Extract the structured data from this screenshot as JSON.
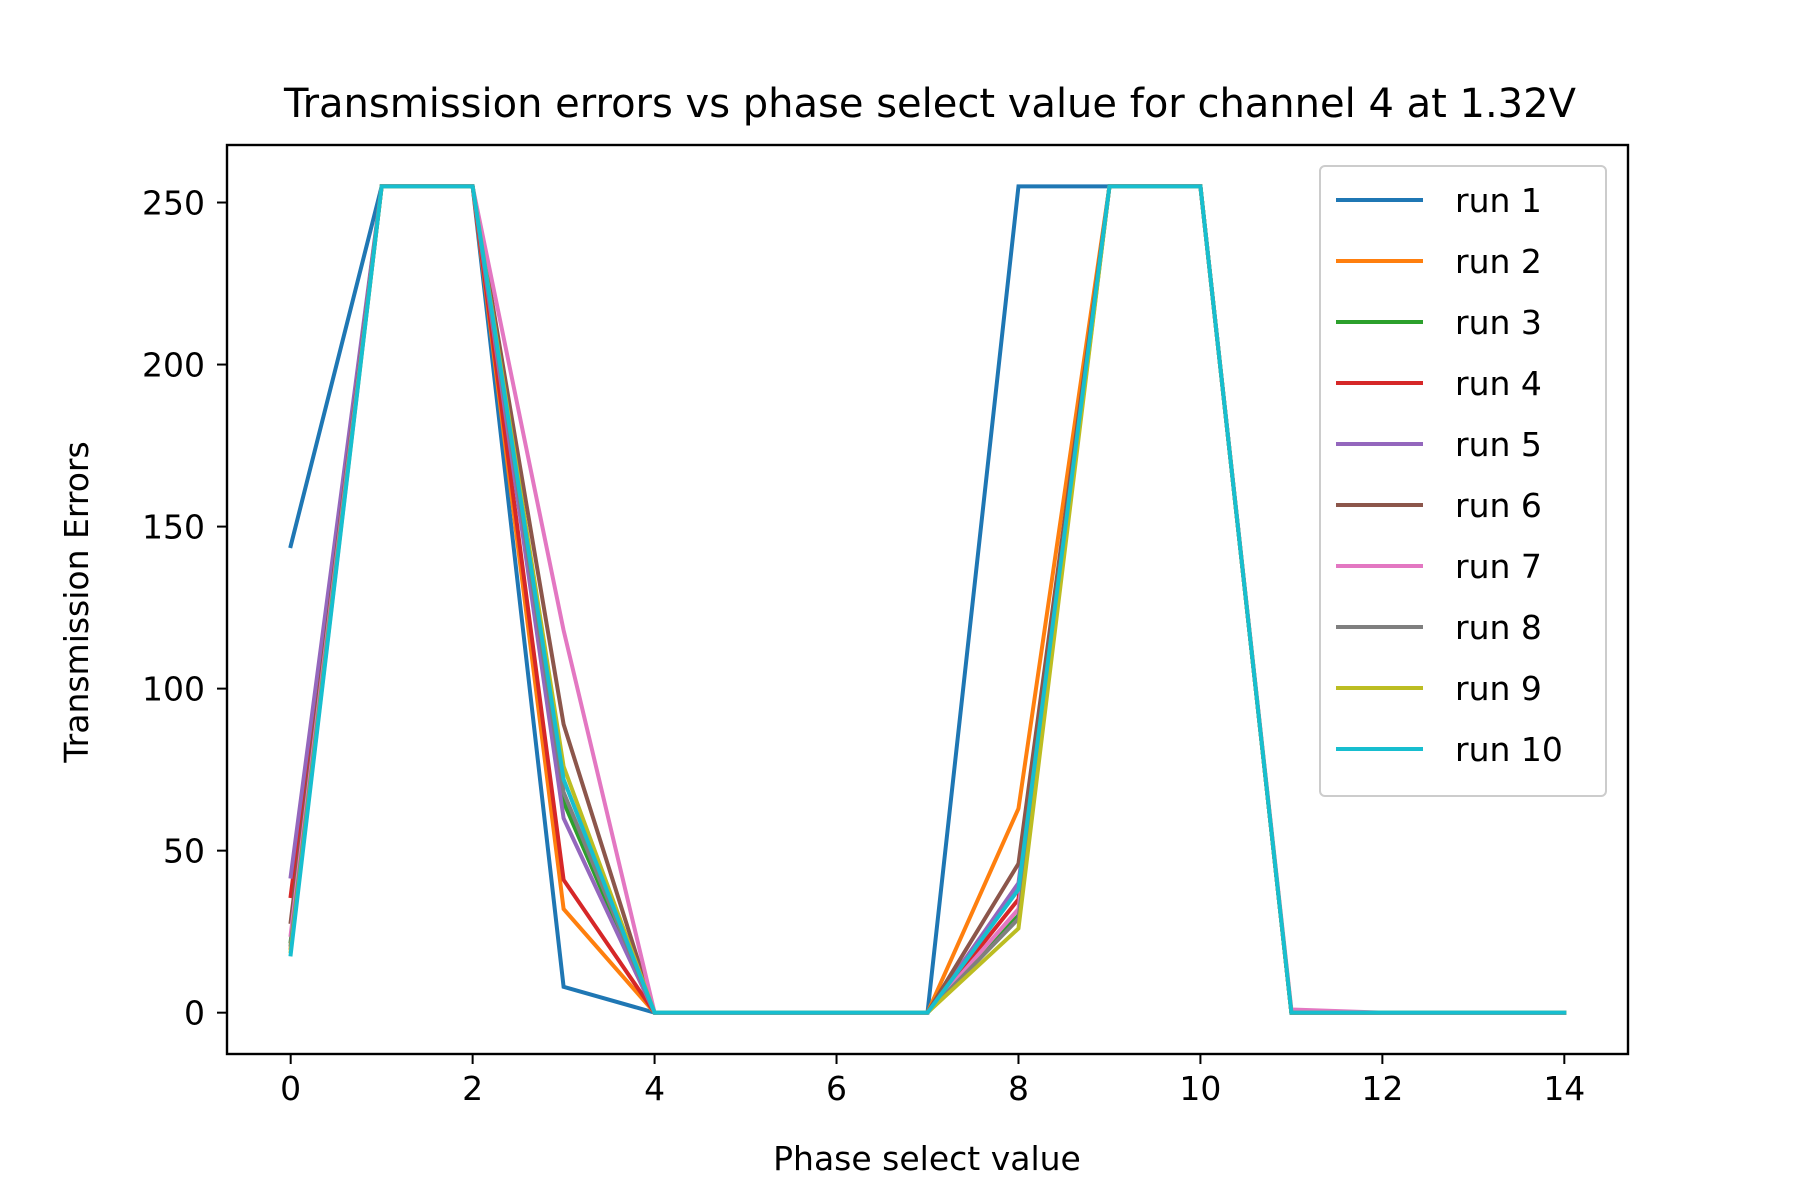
{
  "chart_data": {
    "type": "line",
    "title": "Transmission errors vs phase select value for channel 4 at 1.32V",
    "xlabel": "Phase select value",
    "ylabel": "Transmission Errors",
    "x": [
      0,
      1,
      2,
      3,
      4,
      5,
      6,
      7,
      8,
      9,
      10,
      11,
      12,
      13,
      14
    ],
    "xlim": [
      -0.7,
      14.7
    ],
    "ylim": [
      -12.75,
      267.75
    ],
    "xticks": [
      0,
      2,
      4,
      6,
      8,
      10,
      12,
      14
    ],
    "yticks": [
      0,
      50,
      100,
      150,
      200,
      250
    ],
    "grid": false,
    "legend_position": "upper right",
    "series": [
      {
        "name": "run 1",
        "color": "#1f77b4",
        "values": [
          144,
          255,
          255,
          8,
          0,
          0,
          0,
          0,
          255,
          255,
          255,
          0,
          0,
          0,
          0
        ]
      },
      {
        "name": "run 2",
        "color": "#ff7f0e",
        "values": [
          20,
          255,
          255,
          32,
          0,
          0,
          0,
          0,
          63,
          255,
          255,
          0,
          0,
          0,
          0
        ]
      },
      {
        "name": "run 3",
        "color": "#2ca02c",
        "values": [
          22,
          255,
          255,
          65,
          0,
          0,
          0,
          0,
          30,
          255,
          255,
          0,
          0,
          0,
          0
        ]
      },
      {
        "name": "run 4",
        "color": "#d62728",
        "values": [
          36,
          255,
          255,
          41,
          0,
          0,
          0,
          0,
          35,
          255,
          255,
          0,
          0,
          0,
          0
        ]
      },
      {
        "name": "run 5",
        "color": "#9467bd",
        "values": [
          42,
          255,
          255,
          60,
          0,
          0,
          0,
          0,
          40,
          255,
          255,
          0,
          0,
          0,
          0
        ]
      },
      {
        "name": "run 6",
        "color": "#8c564b",
        "values": [
          28,
          255,
          255,
          89,
          0,
          0,
          0,
          0,
          46,
          255,
          255,
          0,
          0,
          0,
          0
        ]
      },
      {
        "name": "run 7",
        "color": "#e377c2",
        "values": [
          24,
          255,
          255,
          118,
          0,
          0,
          0,
          0,
          32,
          255,
          255,
          1,
          0,
          0,
          0
        ]
      },
      {
        "name": "run 8",
        "color": "#7f7f7f",
        "values": [
          21,
          255,
          255,
          68,
          0,
          0,
          0,
          0,
          29,
          255,
          255,
          0,
          0,
          0,
          0
        ]
      },
      {
        "name": "run 9",
        "color": "#bcbd22",
        "values": [
          19,
          255,
          255,
          76,
          0,
          0,
          0,
          0,
          26,
          255,
          255,
          0,
          0,
          0,
          0
        ]
      },
      {
        "name": "run 10",
        "color": "#17becf",
        "values": [
          18,
          255,
          255,
          72,
          0,
          0,
          0,
          0,
          38,
          255,
          255,
          0,
          0,
          0,
          0
        ]
      }
    ]
  }
}
